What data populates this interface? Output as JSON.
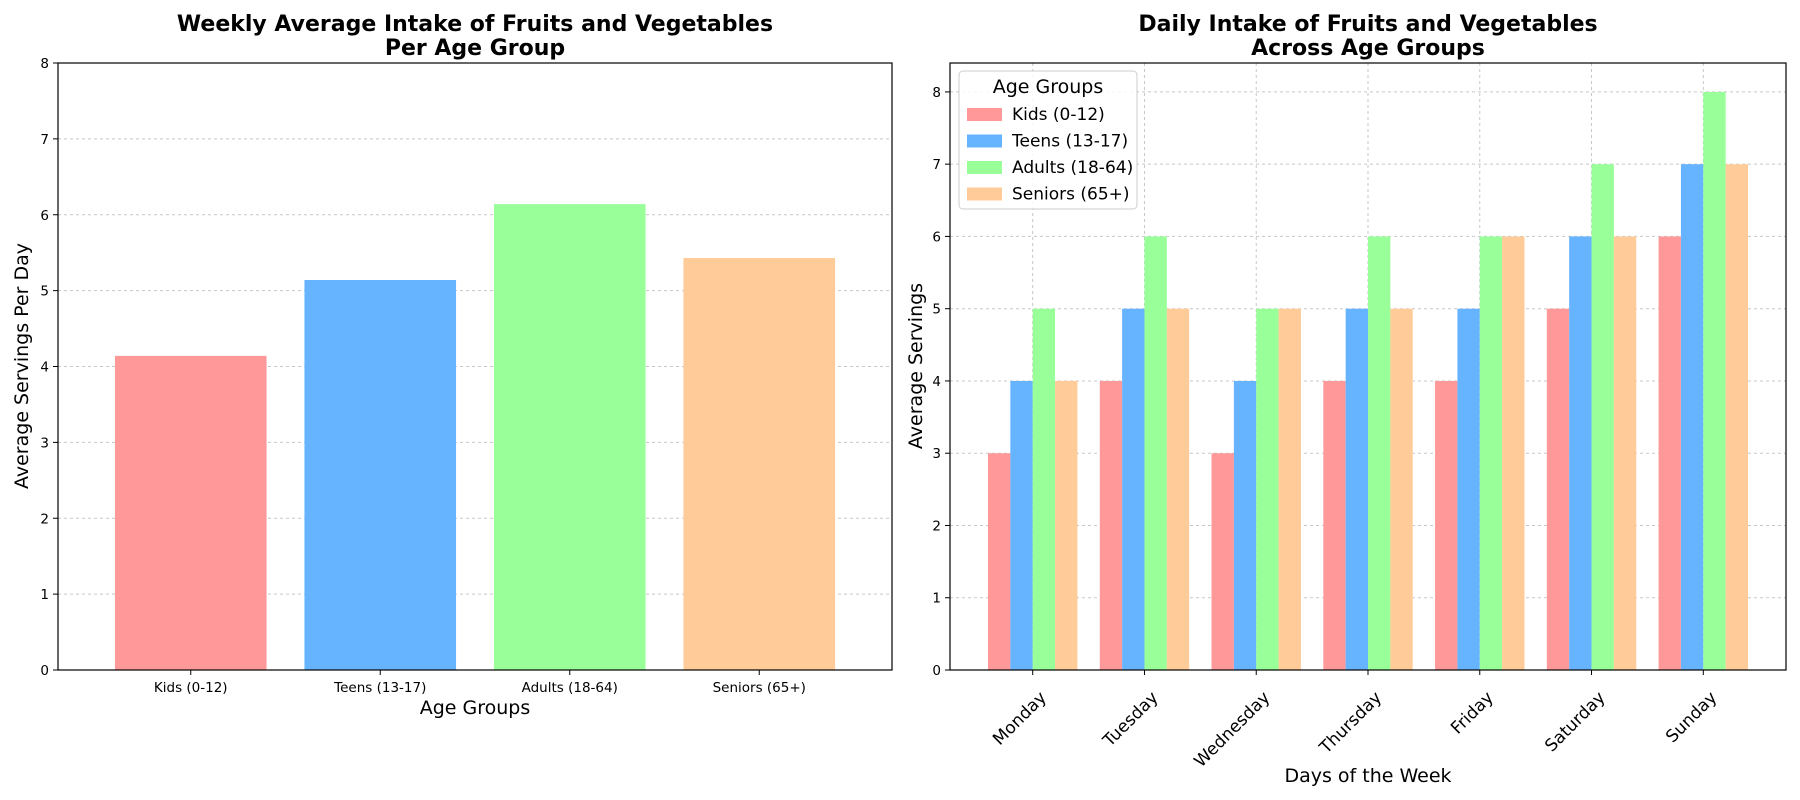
{
  "chart_data": [
    {
      "type": "bar",
      "title_line1": "Weekly Average Intake of Fruits and Vegetables",
      "title_line2": "Per Age Group",
      "xlabel": "Age Groups",
      "ylabel": "Average Servings Per Day",
      "categories": [
        "Kids (0-12)",
        "Teens (13-17)",
        "Adults (18-64)",
        "Seniors (65+)"
      ],
      "values": [
        4.14,
        5.14,
        6.14,
        5.43
      ],
      "colors": [
        "#ff9999",
        "#66b3ff",
        "#99ff99",
        "#ffcc99"
      ],
      "ylim": [
        0,
        8
      ],
      "yticks": [
        "0",
        "1",
        "2",
        "3",
        "4",
        "5",
        "6",
        "7",
        "8"
      ],
      "grid": "y"
    },
    {
      "type": "bar",
      "title_line1": "Daily Intake of Fruits and Vegetables",
      "title_line2": "Across Age Groups",
      "xlabel": "Days of the Week",
      "ylabel": "Average Servings",
      "categories": [
        "Monday",
        "Tuesday",
        "Wednesday",
        "Thursday",
        "Friday",
        "Saturday",
        "Sunday"
      ],
      "series": [
        {
          "name": "Kids (0-12)",
          "color": "#ff9999",
          "values": [
            3,
            4,
            3,
            4,
            4,
            5,
            6
          ]
        },
        {
          "name": "Teens (13-17)",
          "color": "#66b3ff",
          "values": [
            4,
            5,
            4,
            5,
            5,
            6,
            7
          ]
        },
        {
          "name": "Adults (18-64)",
          "color": "#99ff99",
          "values": [
            5,
            6,
            5,
            6,
            6,
            7,
            8
          ]
        },
        {
          "name": "Seniors (65+)",
          "color": "#ffcc99",
          "values": [
            4,
            5,
            5,
            5,
            6,
            6,
            7
          ]
        }
      ],
      "ylim": [
        0,
        8.4
      ],
      "yticks": [
        "0",
        "1",
        "2",
        "3",
        "4",
        "5",
        "6",
        "7",
        "8"
      ],
      "legend_title": "Age Groups",
      "legend_position": "top-left",
      "grid": "both"
    }
  ]
}
